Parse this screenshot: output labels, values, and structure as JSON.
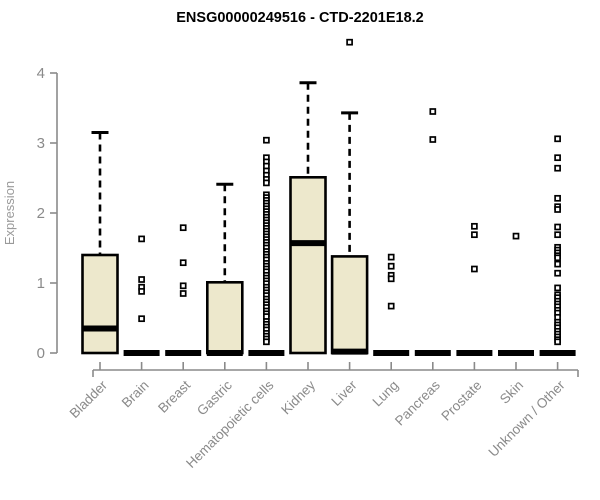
{
  "chart_data": {
    "type": "boxplot",
    "title": "ENSG00000249516 - CTD-2201E18.2",
    "xlabel": "",
    "ylabel": "Expression",
    "ylim": [
      0,
      4
    ],
    "yticks": [
      0,
      1,
      2,
      3,
      4
    ],
    "grid": false,
    "legend": "none",
    "categories": [
      "Bladder",
      "Brain",
      "Breast",
      "Gastric",
      "Hematopoietic cells",
      "Kidney",
      "Liver",
      "Lung",
      "Pancreas",
      "Prostate",
      "Skin",
      "Unknown / Other"
    ],
    "series": [
      {
        "name": "Bladder",
        "q1": 0,
        "median": 0.35,
        "q3": 1.4,
        "whisker_low": 0,
        "whisker_high": 3.15,
        "outliers": []
      },
      {
        "name": "Brain",
        "q1": 0,
        "median": 0,
        "q3": 0,
        "whisker_low": 0,
        "whisker_high": 0,
        "outliers": [
          1.63,
          1.05,
          0.94,
          0.88,
          0.49
        ]
      },
      {
        "name": "Breast",
        "q1": 0,
        "median": 0,
        "q3": 0,
        "whisker_low": 0,
        "whisker_high": 0,
        "outliers": [
          1.79,
          1.29,
          0.96,
          0.85
        ]
      },
      {
        "name": "Gastric",
        "q1": 0,
        "median": 0,
        "q3": 1.01,
        "whisker_low": 0,
        "whisker_high": 2.41,
        "outliers": []
      },
      {
        "name": "Hematopoietic cells",
        "q1": 0,
        "median": 0,
        "q3": 0,
        "whisker_low": 0,
        "whisker_high": 0,
        "outliers": [
          3.04,
          2.79,
          2.73,
          2.67,
          2.6,
          2.54,
          2.48,
          2.43,
          2.26,
          2.22,
          2.18,
          2.14,
          2.1,
          2.06,
          2.02,
          1.98,
          1.94,
          1.9,
          1.86,
          1.82,
          1.78,
          1.74,
          1.7,
          1.66,
          1.62,
          1.58,
          1.54,
          1.5,
          1.45,
          1.41,
          1.37,
          1.33,
          1.28,
          1.24,
          1.2,
          1.16,
          1.11,
          1.07,
          1.03,
          0.99,
          0.94,
          0.9,
          0.86,
          0.82,
          0.77,
          0.73,
          0.69,
          0.65,
          0.6,
          0.56,
          0.52,
          0.45,
          0.41,
          0.37,
          0.33,
          0.28,
          0.24,
          0.2,
          0.16
        ]
      },
      {
        "name": "Kidney",
        "q1": 0,
        "median": 1.57,
        "q3": 2.51,
        "whisker_low": 0,
        "whisker_high": 3.86,
        "outliers": []
      },
      {
        "name": "Liver",
        "q1": 0,
        "median": 0.02,
        "q3": 1.38,
        "whisker_low": 0,
        "whisker_high": 3.43,
        "outliers": [
          4.44
        ]
      },
      {
        "name": "Lung",
        "q1": 0,
        "median": 0,
        "q3": 0,
        "whisker_low": 0,
        "whisker_high": 0,
        "outliers": [
          1.37,
          1.24,
          1.11,
          1.06,
          0.67
        ]
      },
      {
        "name": "Pancreas",
        "q1": 0,
        "median": 0,
        "q3": 0,
        "whisker_low": 0,
        "whisker_high": 0,
        "outliers": [
          3.45,
          3.05
        ]
      },
      {
        "name": "Prostate",
        "q1": 0,
        "median": 0,
        "q3": 0,
        "whisker_low": 0,
        "whisker_high": 0,
        "outliers": [
          1.81,
          1.69,
          1.2
        ]
      },
      {
        "name": "Skin",
        "q1": 0,
        "median": 0,
        "q3": 0,
        "whisker_low": 0,
        "whisker_high": 0,
        "outliers": [
          1.67
        ]
      },
      {
        "name": "Unknown / Other",
        "q1": 0,
        "median": 0,
        "q3": 0,
        "whisker_low": 0,
        "whisker_high": 0,
        "outliers": [
          3.06,
          2.79,
          2.64,
          2.21,
          2.09,
          2.05,
          1.8,
          1.69,
          1.51,
          1.47,
          1.43,
          1.39,
          1.36,
          1.27,
          1.14,
          0.93,
          0.83,
          0.79,
          0.74,
          0.7,
          0.66,
          0.61,
          0.57,
          0.51,
          0.44,
          0.4,
          0.36,
          0.31,
          0.27,
          0.23,
          0.19,
          0.16
        ]
      }
    ],
    "colors": {
      "box_fill": "#EDE8CC",
      "box_border": "#000000",
      "median": "#000000",
      "whisker": "#000000",
      "outlier_stroke": "#000000",
      "outlier_fill": "#FFFFFF",
      "axis": "#8A8A8A",
      "tick_label": "#8A8A8A",
      "title": "#000000",
      "background": "#FFFFFF"
    }
  }
}
